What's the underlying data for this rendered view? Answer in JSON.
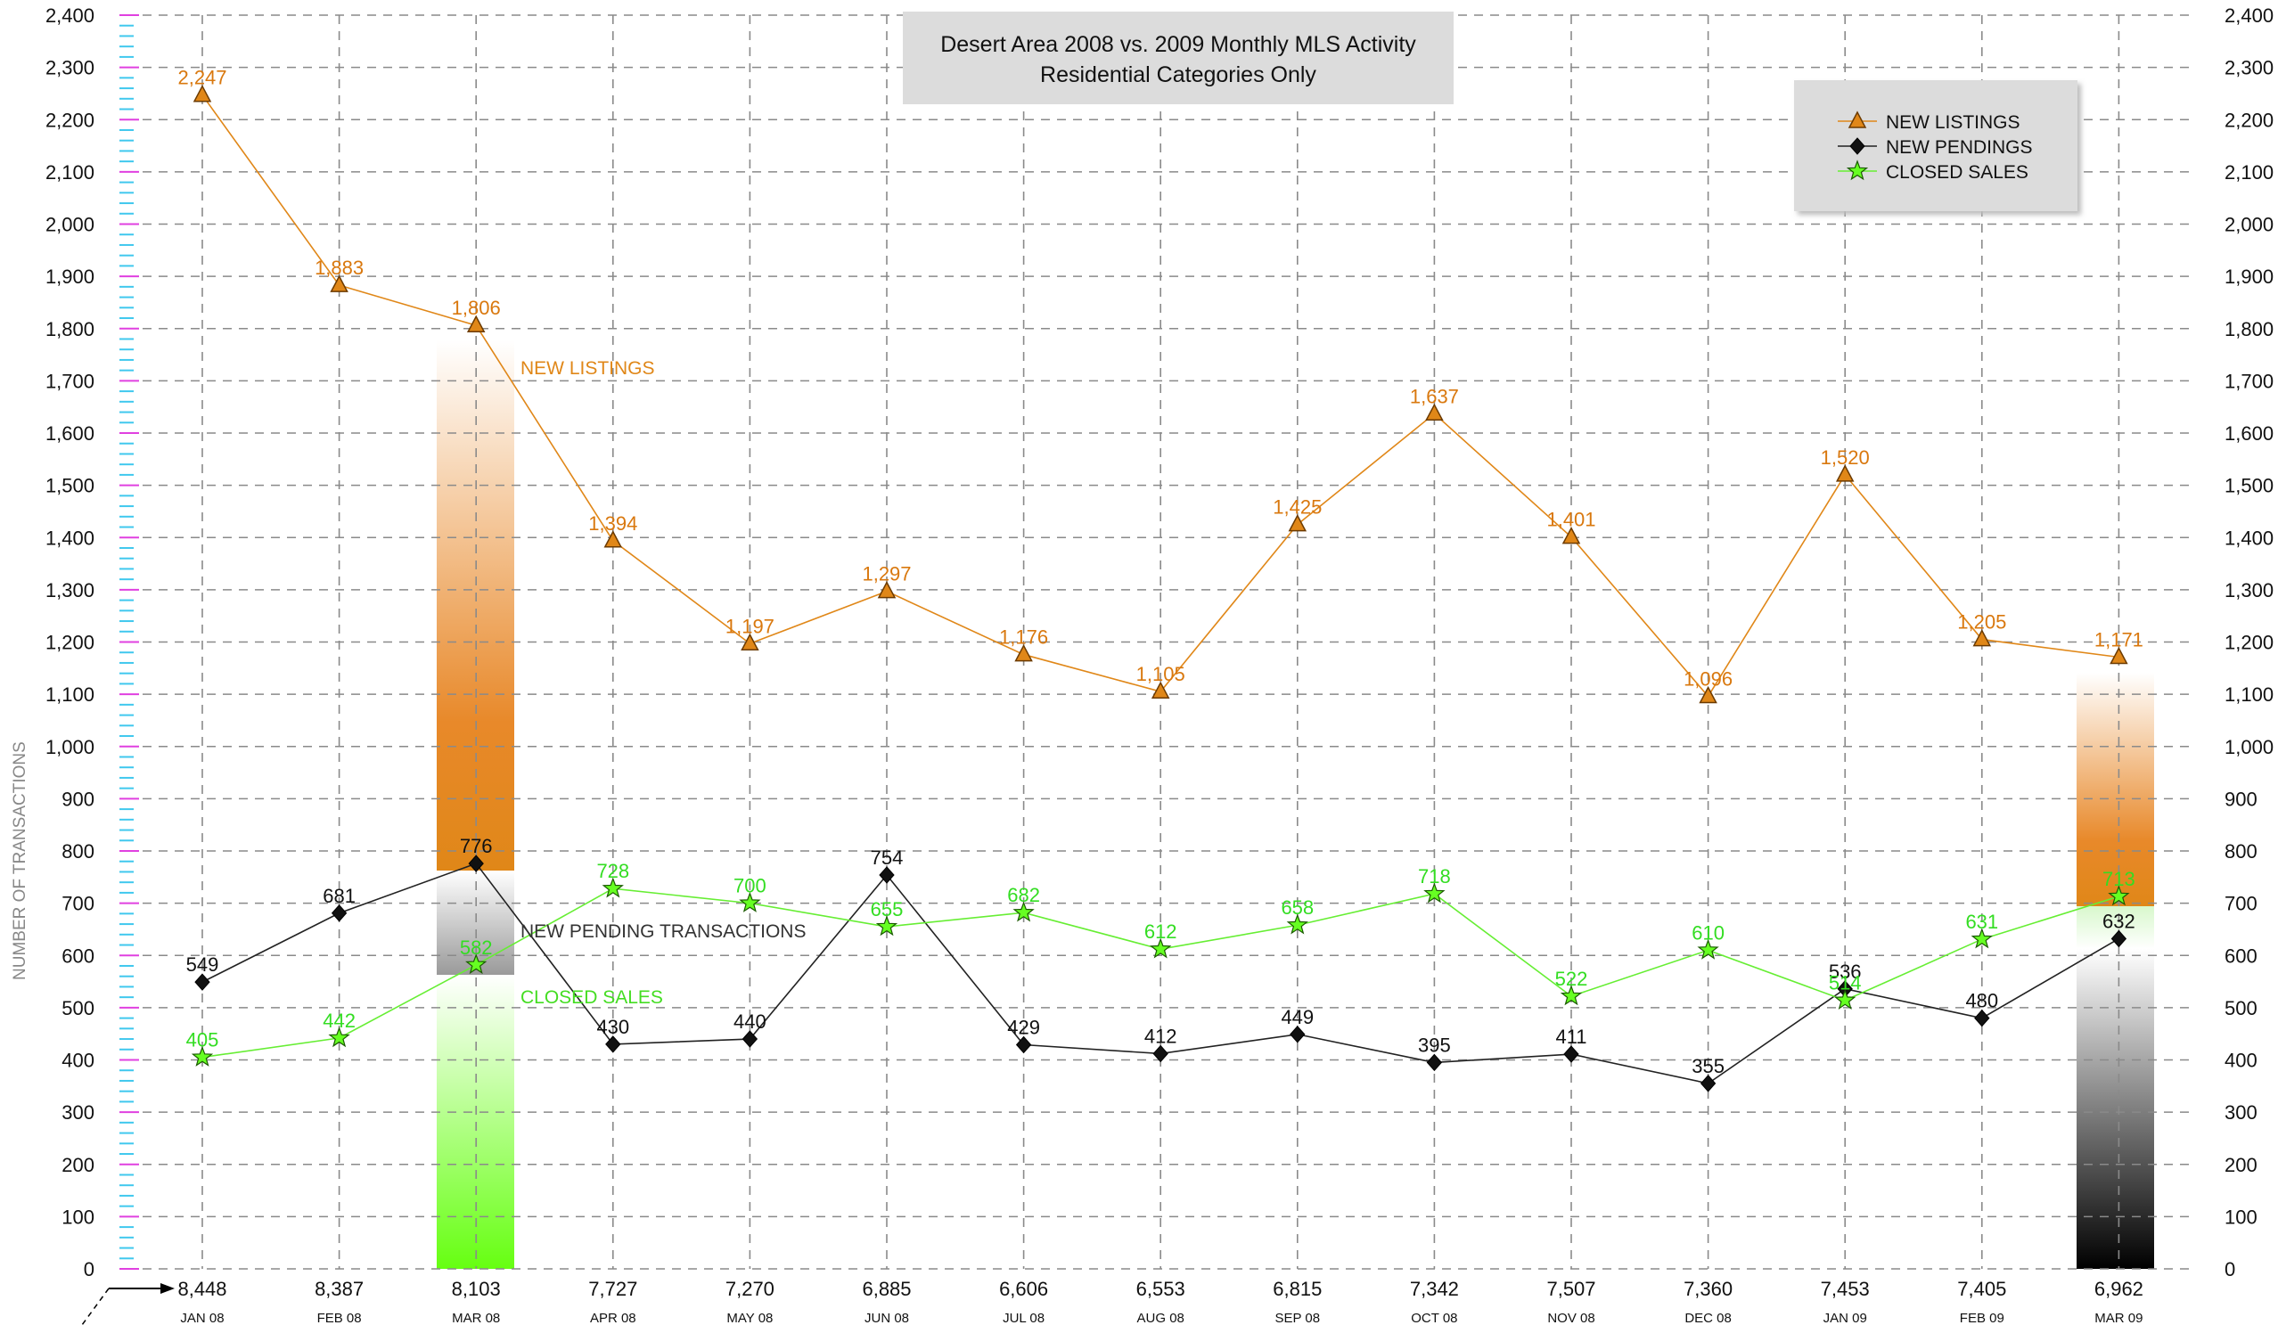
{
  "chart_data": {
    "type": "line",
    "title_lines": [
      "Desert Area 2008 vs. 2009 Monthly MLS Activity",
      "Residential Categories Only"
    ],
    "ylabel": "NUMBER OF TRANSACTIONS",
    "ylim": [
      0,
      2400
    ],
    "yticks": [
      0,
      100,
      200,
      300,
      400,
      500,
      600,
      700,
      800,
      900,
      1000,
      1100,
      1200,
      1300,
      1400,
      1500,
      1600,
      1700,
      1800,
      1900,
      2000,
      2100,
      2200,
      2300,
      2400
    ],
    "ytick_labels": [
      "0",
      "100",
      "200",
      "300",
      "400",
      "500",
      "600",
      "700",
      "800",
      "900",
      "1,000",
      "1,100",
      "1,200",
      "1,300",
      "1,400",
      "1,500",
      "1,600",
      "1,700",
      "1,800",
      "1,900",
      "2,000",
      "2,100",
      "2,200",
      "2,300",
      "2,400"
    ],
    "categories": [
      "JAN 08",
      "FEB 08",
      "MAR 08",
      "APR 08",
      "MAY 08",
      "JUN 08",
      "JUL 08",
      "AUG 08",
      "SEP 08",
      "OCT 08",
      "NOV 08",
      "DEC 08",
      "JAN 09",
      "FEB 09",
      "MAR 09"
    ],
    "inventory": [
      "8,448",
      "8,387",
      "8,103",
      "7,727",
      "7,270",
      "6,885",
      "6,606",
      "6,553",
      "6,815",
      "7,342",
      "7,507",
      "7,360",
      "7,453",
      "7,405",
      "6,962"
    ],
    "grid": true,
    "legend_position": "top-right",
    "series": [
      {
        "name": "NEW LISTINGS",
        "color": "#e08718",
        "label_color": "#d9780e",
        "marker": "triangle",
        "values": [
          2247,
          1883,
          1806,
          1394,
          1197,
          1297,
          1176,
          1105,
          1425,
          1637,
          1401,
          1096,
          1520,
          1205,
          1171
        ],
        "labels": [
          "2,247",
          "1,883",
          "1,806",
          "1,394",
          "1,197",
          "1,297",
          "1,176",
          "1,105",
          "1,425",
          "1,637",
          "1,401",
          "1,096",
          "1,520",
          "1,205",
          "1,171"
        ]
      },
      {
        "name": "NEW PENDINGS",
        "color": "#222222",
        "label_color": "#111111",
        "marker": "diamond",
        "values": [
          549,
          681,
          776,
          430,
          440,
          754,
          429,
          412,
          449,
          395,
          411,
          355,
          536,
          480,
          632
        ],
        "labels": [
          "549",
          "681",
          "776",
          "430",
          "440",
          "754",
          "429",
          "412",
          "449",
          "395",
          "411",
          "355",
          "536",
          "480",
          "632"
        ]
      },
      {
        "name": "CLOSED SALES",
        "color": "#66ee33",
        "label_color": "#33dd22",
        "marker": "star",
        "values": [
          405,
          442,
          582,
          728,
          700,
          655,
          682,
          612,
          658,
          718,
          522,
          610,
          514,
          631,
          713
        ],
        "labels": [
          "405",
          "442",
          "582",
          "728",
          "700",
          "655",
          "682",
          "612",
          "658",
          "718",
          "522",
          "610",
          "514",
          "631",
          "713"
        ]
      }
    ],
    "annotations": [
      {
        "text": "NEW LISTINGS",
        "color": "#e08718"
      },
      {
        "text": "NEW PENDING TRANSACTIONS",
        "color": "#333333"
      },
      {
        "text": "CLOSED SALES",
        "color": "#44dd22"
      }
    ]
  }
}
